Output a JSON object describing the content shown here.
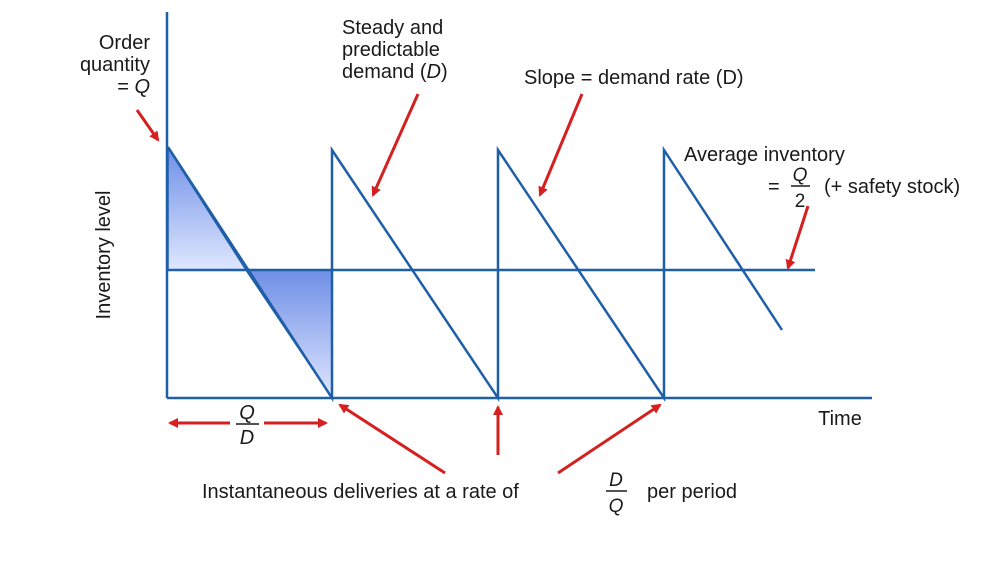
{
  "labels": {
    "order_quantity_line1": "Order",
    "order_quantity_line2": "quantity",
    "order_quantity_eq": "= ",
    "order_quantity_var": "Q",
    "y_axis": "Inventory level",
    "x_axis": "Time",
    "steady_line1": "Steady and",
    "steady_line2": "predictable",
    "steady_line3_prefix": "demand (",
    "steady_line3_var": "D",
    "steady_line3_suffix": ")",
    "slope": "Slope = demand rate (D)",
    "average_line1": "Average inventory",
    "average_eq": "=",
    "average_num": "Q",
    "average_den": "2",
    "average_suffix": "(+ safety stock)",
    "cycle_num": "Q",
    "cycle_den": "D",
    "deliveries_prefix": "Instantaneous deliveries at a rate of",
    "deliveries_num": "D",
    "deliveries_den": "Q",
    "deliveries_suffix": "per period"
  },
  "colors": {
    "line": "#1f5fa8",
    "arrow": "#d62020",
    "fill_top": "#6f8fe6",
    "fill_bottom": "#dfe7ff",
    "text": "#1a1a1a"
  }
}
